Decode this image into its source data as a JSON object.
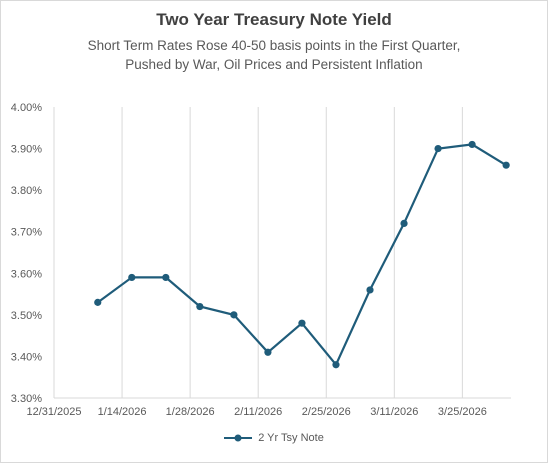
{
  "chart_data": {
    "type": "line",
    "title": "Two Year Treasury Note Yield",
    "subtitle": [
      "Short Term Rates Rose 40-50 basis points in the First Quarter,",
      "Pushed by War, Oil Prices and Persistent Inflation"
    ],
    "xlabel": "",
    "ylabel": "",
    "x_tick_labels": [
      "12/31/2025",
      "1/14/2026",
      "1/28/2026",
      "2/11/2026",
      "2/25/2026",
      "3/11/2026",
      "3/25/2026"
    ],
    "y_tick_labels": [
      "3.30%",
      "3.40%",
      "3.50%",
      "3.60%",
      "3.70%",
      "3.80%",
      "3.90%",
      "4.00%"
    ],
    "xlim": [
      "2025-12-31",
      "2026-04-04"
    ],
    "ylim": [
      3.3,
      4.0
    ],
    "grid": "vertical",
    "legend_position": "bottom",
    "series": [
      {
        "name": "2 Yr Tsy Note",
        "color": "#1f5c7a",
        "x": [
          "2026-01-09",
          "2026-01-16",
          "2026-01-23",
          "2026-01-30",
          "2026-02-06",
          "2026-02-13",
          "2026-02-20",
          "2026-02-27",
          "2026-03-06",
          "2026-03-13",
          "2026-03-20",
          "2026-03-27",
          "2026-04-03"
        ],
        "values": [
          3.53,
          3.59,
          3.59,
          3.52,
          3.5,
          3.41,
          3.48,
          3.38,
          3.56,
          3.72,
          3.9,
          3.91,
          3.86
        ]
      }
    ]
  }
}
